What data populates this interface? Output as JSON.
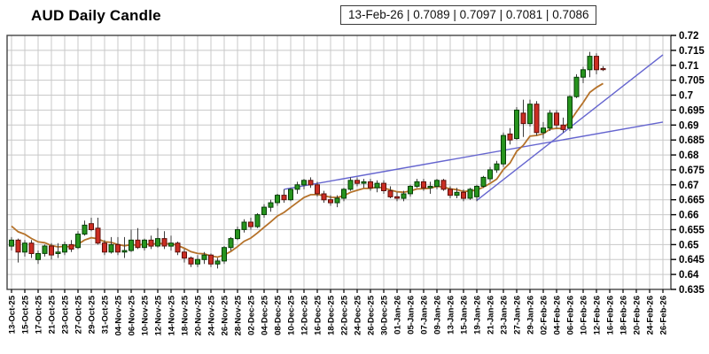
{
  "title": {
    "text": "AUD Daily Candle"
  },
  "tooltip": {
    "display": "13-Feb-26 | 0.7089 | 0.7097 | 0.7081 | 0.7086",
    "date": "13-Feb-26",
    "open": "0.7089",
    "high": "0.7097",
    "low": "0.7081",
    "close": "0.7086"
  },
  "chart_data": {
    "type": "candlestick",
    "title": "AUD Daily Candle",
    "y_axis": {
      "min": 0.635,
      "max": 0.72,
      "step": 0.005,
      "side": "right",
      "tick_labels": [
        "0.72",
        "0.715",
        "0.71",
        "0.705",
        "0.7",
        "0.695",
        "0.69",
        "0.685",
        "0.68",
        "0.675",
        "0.67",
        "0.665",
        "0.66",
        "0.655",
        "0.65",
        "0.645",
        "0.64",
        "0.635"
      ]
    },
    "x_axis": {
      "total_slots": 99,
      "label_every_slots": 2,
      "labels": [
        "13-Oct-25",
        "15-Oct-25",
        "17-Oct-25",
        "21-Oct-25",
        "23-Oct-25",
        "27-Oct-25",
        "29-Oct-25",
        "31-Oct-25",
        "04-Nov-25",
        "06-Nov-25",
        "10-Nov-25",
        "12-Nov-25",
        "14-Nov-25",
        "18-Nov-25",
        "20-Nov-25",
        "24-Nov-25",
        "26-Nov-25",
        "28-Nov-25",
        "02-Dec-25",
        "04-Dec-25",
        "08-Dec-25",
        "10-Dec-25",
        "12-Dec-25",
        "16-Dec-25",
        "18-Dec-25",
        "22-Dec-25",
        "24-Dec-25",
        "26-Dec-25",
        "30-Dec-25",
        "01-Jan-26",
        "05-Jan-26",
        "07-Jan-26",
        "09-Jan-26",
        "13-Jan-26",
        "15-Jan-26",
        "19-Jan-26",
        "21-Jan-26",
        "23-Jan-26",
        "27-Jan-26",
        "29-Jan-26",
        "02-Feb-26",
        "04-Feb-26",
        "06-Feb-26",
        "10-Feb-26",
        "12-Feb-26",
        "16-Feb-26",
        "18-Feb-26",
        "20-Feb-26",
        "24-Feb-26",
        "26-Feb-26"
      ]
    },
    "candles": [
      [
        "13-Oct-25",
        0.6495,
        0.6525,
        0.648,
        0.6515
      ],
      [
        "14-Oct-25",
        0.6515,
        0.652,
        0.644,
        0.6475
      ],
      [
        "15-Oct-25",
        0.6475,
        0.6515,
        0.646,
        0.6505
      ],
      [
        "16-Oct-25",
        0.6505,
        0.6515,
        0.6455,
        0.647
      ],
      [
        "17-Oct-25",
        0.645,
        0.648,
        0.6435,
        0.647
      ],
      [
        "20-Oct-25",
        0.647,
        0.65,
        0.646,
        0.6495
      ],
      [
        "21-Oct-25",
        0.6495,
        0.6505,
        0.645,
        0.6465
      ],
      [
        "22-Oct-25",
        0.647,
        0.6505,
        0.6455,
        0.6475
      ],
      [
        "23-Oct-25",
        0.6475,
        0.651,
        0.6465,
        0.65
      ],
      [
        "24-Oct-25",
        0.65,
        0.6515,
        0.6475,
        0.6485
      ],
      [
        "27-Oct-25",
        0.649,
        0.6545,
        0.6485,
        0.6535
      ],
      [
        "28-Oct-25",
        0.6535,
        0.658,
        0.653,
        0.6565
      ],
      [
        "29-Oct-25",
        0.657,
        0.659,
        0.6545,
        0.655
      ],
      [
        "30-Oct-25",
        0.6555,
        0.659,
        0.65,
        0.6505
      ],
      [
        "31-Oct-25",
        0.6505,
        0.6515,
        0.6465,
        0.6475
      ],
      [
        "03-Nov-25",
        0.6475,
        0.6525,
        0.647,
        0.65
      ],
      [
        "04-Nov-25",
        0.65,
        0.6525,
        0.6465,
        0.6475
      ],
      [
        "05-Nov-25",
        0.6475,
        0.6525,
        0.6455,
        0.648
      ],
      [
        "06-Nov-25",
        0.648,
        0.655,
        0.6475,
        0.6515
      ],
      [
        "07-Nov-25",
        0.6515,
        0.6555,
        0.6485,
        0.649
      ],
      [
        "10-Nov-25",
        0.649,
        0.652,
        0.648,
        0.6515
      ],
      [
        "11-Nov-25",
        0.6515,
        0.653,
        0.6485,
        0.6495
      ],
      [
        "12-Nov-25",
        0.6495,
        0.6555,
        0.649,
        0.652
      ],
      [
        "13-Nov-25",
        0.652,
        0.6545,
        0.6485,
        0.6495
      ],
      [
        "14-Nov-25",
        0.6495,
        0.653,
        0.648,
        0.6505
      ],
      [
        "17-Nov-25",
        0.6505,
        0.651,
        0.6465,
        0.6475
      ],
      [
        "18-Nov-25",
        0.6475,
        0.6485,
        0.644,
        0.6455
      ],
      [
        "19-Nov-25",
        0.6455,
        0.646,
        0.6425,
        0.6435
      ],
      [
        "20-Nov-25",
        0.6435,
        0.6465,
        0.6425,
        0.645
      ],
      [
        "21-Nov-25",
        0.645,
        0.6475,
        0.6435,
        0.6465
      ],
      [
        "24-Nov-25",
        0.6465,
        0.647,
        0.6425,
        0.6435
      ],
      [
        "25-Nov-25",
        0.6435,
        0.6455,
        0.642,
        0.6445
      ],
      [
        "26-Nov-25",
        0.6445,
        0.6495,
        0.6435,
        0.649
      ],
      [
        "27-Nov-25",
        0.649,
        0.6525,
        0.648,
        0.652
      ],
      [
        "28-Nov-25",
        0.652,
        0.656,
        0.6515,
        0.655
      ],
      [
        "01-Dec-25",
        0.655,
        0.6585,
        0.654,
        0.6575
      ],
      [
        "02-Dec-25",
        0.6575,
        0.659,
        0.655,
        0.656
      ],
      [
        "03-Dec-25",
        0.656,
        0.6605,
        0.6555,
        0.66
      ],
      [
        "04-Dec-25",
        0.66,
        0.6635,
        0.659,
        0.6625
      ],
      [
        "05-Dec-25",
        0.6625,
        0.665,
        0.661,
        0.664
      ],
      [
        "08-Dec-25",
        0.664,
        0.667,
        0.663,
        0.6665
      ],
      [
        "09-Dec-25",
        0.6665,
        0.6685,
        0.664,
        0.665
      ],
      [
        "10-Dec-25",
        0.665,
        0.669,
        0.6645,
        0.6685
      ],
      [
        "11-Dec-25",
        0.6685,
        0.671,
        0.667,
        0.67
      ],
      [
        "12-Dec-25",
        0.67,
        0.672,
        0.6685,
        0.6715
      ],
      [
        "15-Dec-25",
        0.6715,
        0.6725,
        0.669,
        0.67
      ],
      [
        "16-Dec-25",
        0.67,
        0.671,
        0.666,
        0.667
      ],
      [
        "17-Dec-25",
        0.667,
        0.668,
        0.664,
        0.665
      ],
      [
        "18-Dec-25",
        0.665,
        0.6665,
        0.663,
        0.664
      ],
      [
        "19-Dec-25",
        0.664,
        0.6665,
        0.6625,
        0.6655
      ],
      [
        "22-Dec-25",
        0.6655,
        0.669,
        0.6645,
        0.6685
      ],
      [
        "23-Dec-25",
        0.6685,
        0.6725,
        0.668,
        0.6715
      ],
      [
        "24-Dec-25",
        0.6715,
        0.6725,
        0.6695,
        0.6705
      ],
      [
        "25-Dec-25",
        0.6705,
        0.672,
        0.669,
        0.671
      ],
      [
        "26-Dec-25",
        0.671,
        0.672,
        0.668,
        0.669
      ],
      [
        "29-Dec-25",
        0.669,
        0.6715,
        0.6675,
        0.6705
      ],
      [
        "30-Dec-25",
        0.6705,
        0.6715,
        0.667,
        0.668
      ],
      [
        "31-Dec-25",
        0.668,
        0.6695,
        0.6655,
        0.666
      ],
      [
        "01-Jan-26",
        0.666,
        0.6675,
        0.6645,
        0.6655
      ],
      [
        "02-Jan-26",
        0.6655,
        0.668,
        0.6645,
        0.667
      ],
      [
        "05-Jan-26",
        0.667,
        0.67,
        0.666,
        0.6695
      ],
      [
        "06-Jan-26",
        0.6695,
        0.672,
        0.669,
        0.671
      ],
      [
        "07-Jan-26",
        0.671,
        0.672,
        0.668,
        0.669
      ],
      [
        "08-Jan-26",
        0.669,
        0.671,
        0.667,
        0.6695
      ],
      [
        "09-Jan-26",
        0.6695,
        0.672,
        0.6685,
        0.6715
      ],
      [
        "12-Jan-26",
        0.6715,
        0.672,
        0.668,
        0.6685
      ],
      [
        "13-Jan-26",
        0.6685,
        0.6695,
        0.6655,
        0.6665
      ],
      [
        "14-Jan-26",
        0.6665,
        0.669,
        0.6655,
        0.6675
      ],
      [
        "15-Jan-26",
        0.6675,
        0.6685,
        0.6645,
        0.6655
      ],
      [
        "16-Jan-26",
        0.6655,
        0.669,
        0.665,
        0.6685
      ],
      [
        "19-Jan-26",
        0.666,
        0.67,
        0.6645,
        0.6695
      ],
      [
        "20-Jan-26",
        0.6695,
        0.673,
        0.669,
        0.6725
      ],
      [
        "21-Jan-26",
        0.672,
        0.676,
        0.671,
        0.675
      ],
      [
        "22-Jan-26",
        0.675,
        0.678,
        0.674,
        0.677
      ],
      [
        "23-Jan-26",
        0.677,
        0.6875,
        0.676,
        0.6865
      ],
      [
        "26-Jan-26",
        0.687,
        0.689,
        0.6835,
        0.685
      ],
      [
        "27-Jan-26",
        0.6855,
        0.696,
        0.685,
        0.695
      ],
      [
        "28-Jan-26",
        0.694,
        0.6985,
        0.686,
        0.6905
      ],
      [
        "29-Jan-26",
        0.6905,
        0.6985,
        0.6895,
        0.697
      ],
      [
        "30-Jan-26",
        0.697,
        0.698,
        0.6865,
        0.6875
      ],
      [
        "02-Feb-26",
        0.6875,
        0.691,
        0.6855,
        0.689
      ],
      [
        "03-Feb-26",
        0.689,
        0.695,
        0.688,
        0.694
      ],
      [
        "04-Feb-26",
        0.694,
        0.695,
        0.689,
        0.69
      ],
      [
        "05-Feb-26",
        0.69,
        0.6925,
        0.6875,
        0.6885
      ],
      [
        "06-Feb-26",
        0.689,
        0.7,
        0.688,
        0.6995
      ],
      [
        "09-Feb-26",
        0.6995,
        0.707,
        0.699,
        0.706
      ],
      [
        "10-Feb-26",
        0.706,
        0.7095,
        0.704,
        0.7085
      ],
      [
        "11-Feb-26",
        0.7085,
        0.7145,
        0.706,
        0.713
      ],
      [
        "12-Feb-26",
        0.713,
        0.714,
        0.707,
        0.7085
      ],
      [
        "13-Feb-26",
        0.7089,
        0.7097,
        0.7081,
        0.7086
      ]
    ],
    "moving_average": {
      "seed": 0.6575,
      "alpha": 0.22,
      "color": "#b5722a"
    },
    "trendlines": [
      {
        "from_slot": 41,
        "from_price": 0.6685,
        "to_slot": 98,
        "to_price": 0.691
      },
      {
        "from_slot": 70,
        "from_price": 0.6648,
        "to_slot": 98,
        "to_price": 0.7135
      }
    ],
    "colors": {
      "up": "#27941e",
      "up_border": "#073f07",
      "down": "#cb2d23",
      "down_border": "#5f100b",
      "wick": "#3c3c3c",
      "grid": "#c8c8c8",
      "frame": "#444444",
      "trendline": "#6565cf",
      "background": "#ffffff",
      "text": "#000000"
    },
    "grid": true,
    "legend": null
  }
}
